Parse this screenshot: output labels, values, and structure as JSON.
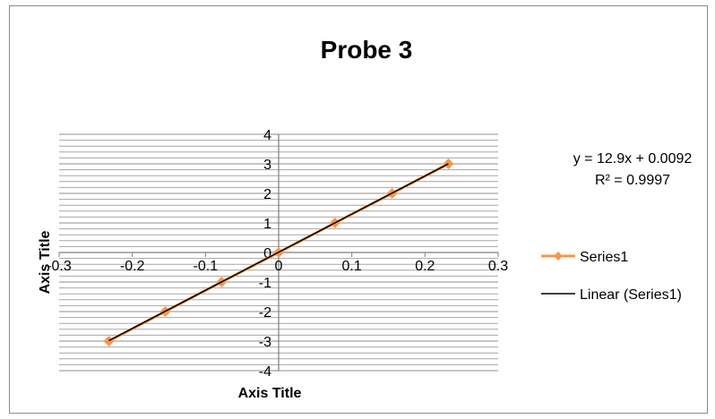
{
  "chart_data": {
    "type": "scatter",
    "title": "Probe 3",
    "xlabel": "Axis Title",
    "ylabel": "Axis Title",
    "xlim": [
      -0.3,
      0.3
    ],
    "ylim": [
      -4,
      4
    ],
    "x_ticks": [
      "-0.3",
      "-0.2",
      "-0.1",
      "0",
      "0.1",
      "0.2",
      "0.3"
    ],
    "y_ticks": [
      "4",
      "3",
      "2",
      "1",
      "0",
      "-1",
      "-2",
      "-3",
      "-4"
    ],
    "grid": "horizontal major and minor",
    "series": [
      {
        "name": "Series1",
        "color": "#f79646",
        "marker": "diamond",
        "x": [
          -0.232,
          -0.155,
          -0.078,
          0.0,
          0.077,
          0.155,
          0.232
        ],
        "y": [
          -3,
          -2,
          -1,
          0,
          1,
          2,
          3
        ]
      }
    ],
    "trendline": {
      "name": "Linear (Series1)",
      "color": "#000000",
      "slope": 12.9,
      "intercept": 0.0092,
      "equation": "y = 12.9x + 0.0092",
      "r_squared": "R² = 0.9997"
    },
    "legend": {
      "position": "right",
      "entries": [
        "Series1",
        "Linear (Series1)"
      ]
    }
  }
}
